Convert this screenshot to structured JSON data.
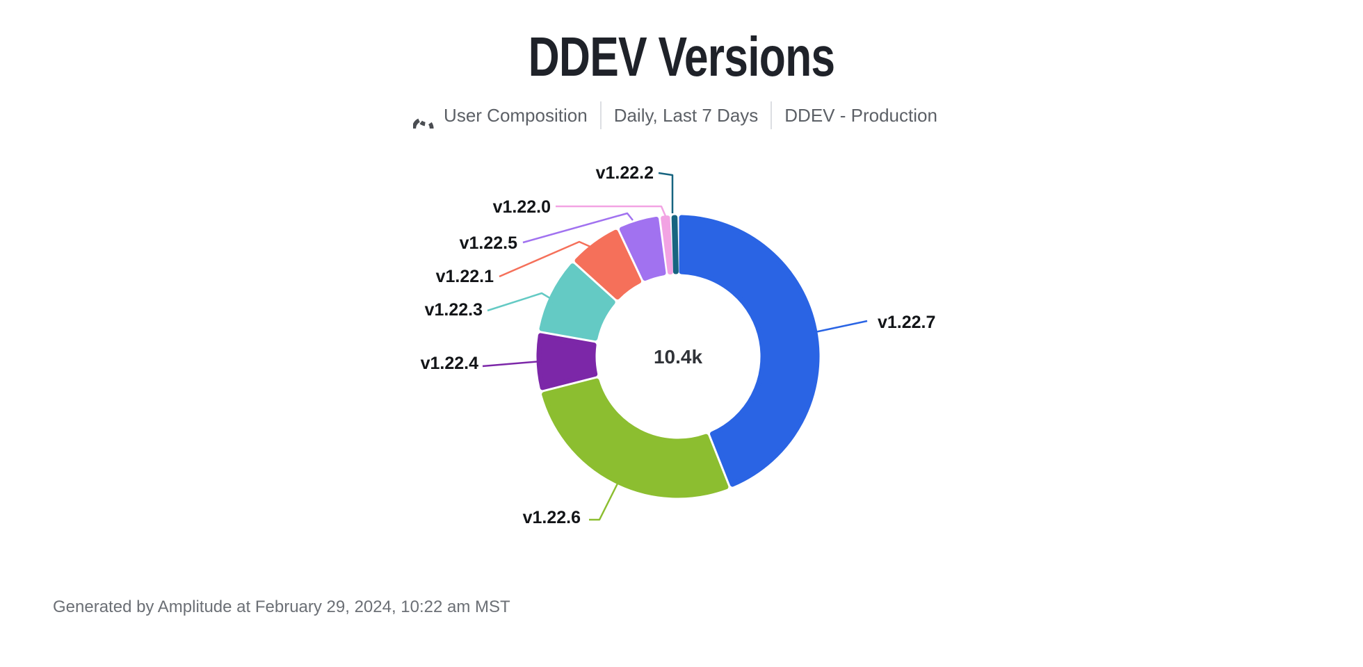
{
  "title": "DDEV Versions",
  "subtitle": {
    "icon": "donut-chart-icon",
    "items": [
      "User Composition",
      "Daily, Last 7 Days",
      "DDEV - Production"
    ]
  },
  "center_total": "10.4k",
  "footer": "Generated by Amplitude at February 29, 2024, 10:22 am MST",
  "colors": {
    "title_text": "#1f2229",
    "subtitle_text": "#5c6066",
    "label_text": "#121417",
    "footer_text": "#6b6f75",
    "background": "#ffffff"
  },
  "chart_data": {
    "type": "pie",
    "donut": true,
    "title": "DDEV Versions",
    "center_label": "10.4k",
    "total_label": "10.4k",
    "legend_position": "callout-labels",
    "grid": false,
    "slices": [
      {
        "label": "v1.22.7",
        "percent": 44.0,
        "color": "#2a64e4"
      },
      {
        "label": "v1.22.6",
        "percent": 27.0,
        "color": "#8cbe30"
      },
      {
        "label": "v1.22.4",
        "percent": 6.8,
        "color": "#7c27a8"
      },
      {
        "label": "v1.22.3",
        "percent": 8.9,
        "color": "#64cac4"
      },
      {
        "label": "v1.22.1",
        "percent": 6.3,
        "color": "#f5705a"
      },
      {
        "label": "v1.22.5",
        "percent": 4.9,
        "color": "#a172f0"
      },
      {
        "label": "v1.22.0",
        "percent": 1.3,
        "color": "#f2a3e3"
      },
      {
        "label": "v1.22.2",
        "percent": 0.8,
        "color": "#176480"
      }
    ]
  }
}
